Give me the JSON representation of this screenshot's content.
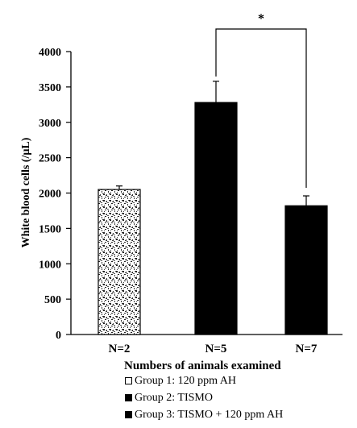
{
  "chart_data": {
    "type": "bar",
    "title": "",
    "xlabel": "Numbers of animals examined",
    "ylabel": "White blood cells (/µL)",
    "categories": [
      "N=2",
      "N=5",
      "N=7"
    ],
    "values": [
      2050,
      3280,
      1820
    ],
    "errors": [
      50,
      300,
      140
    ],
    "ylim": [
      0,
      4000
    ],
    "yticks": [
      "0",
      "500",
      "1000",
      "1500",
      "2000",
      "2500",
      "3000",
      "3500",
      "4000"
    ],
    "bar_colors": [
      "#ffffff",
      "#000000",
      "#000000"
    ],
    "first_bar_pattern": "stippled",
    "grid": false,
    "significance": {
      "from": 1,
      "to": 2,
      "label": "*"
    },
    "legend": {
      "placement": "bottom",
      "entries": [
        {
          "label": "Group 1: 120 ppm AH",
          "swatch": "open"
        },
        {
          "label": "Group 2: TISMO",
          "swatch": "filled"
        },
        {
          "label": "Group 3: TISMO + 120 ppm AH",
          "swatch": "filled"
        }
      ]
    }
  }
}
